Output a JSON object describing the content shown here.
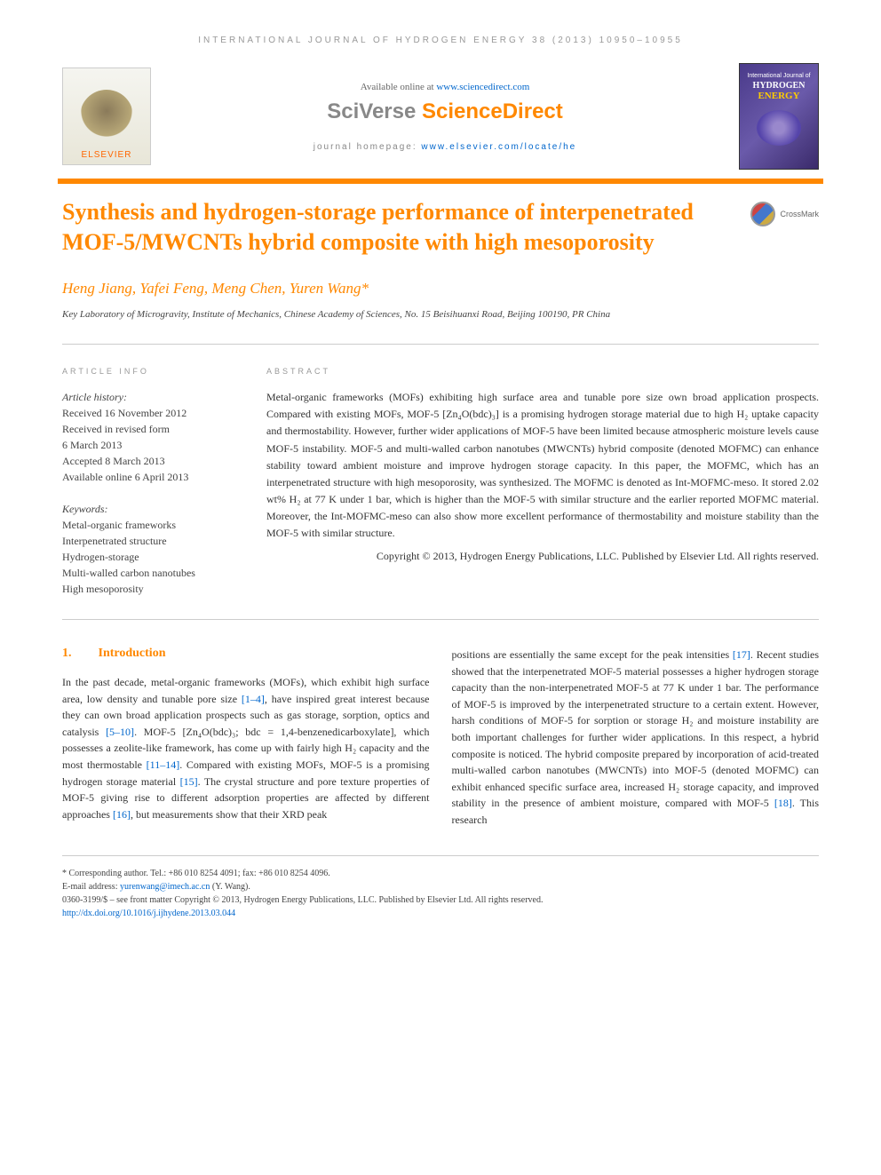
{
  "header": {
    "journal_ref": "INTERNATIONAL JOURNAL OF HYDROGEN ENERGY 38 (2013) 10950–10955",
    "available_prefix": "Available online at ",
    "available_link": "www.sciencedirect.com",
    "sciverse": "SciVerse ",
    "sciencedirect": "ScienceDirect",
    "homepage_prefix": "journal homepage: ",
    "homepage_link": "www.elsevier.com/locate/he",
    "elsevier": "ELSEVIER",
    "cover_top": "International Journal of",
    "cover_hydrogen": "HYDROGEN",
    "cover_energy": "ENERGY"
  },
  "crossmark": "CrossMark",
  "title": "Synthesis and hydrogen-storage performance of interpenetrated MOF-5/MWCNTs hybrid composite with high mesoporosity",
  "authors": "Heng Jiang, Yafei Feng, Meng Chen, Yuren Wang",
  "authors_marker": "*",
  "affiliation": "Key Laboratory of Microgravity, Institute of Mechanics, Chinese Academy of Sciences, No. 15 Beisihuanxi Road, Beijing 100190, PR China",
  "article_info": {
    "label": "ARTICLE INFO",
    "history_label": "Article history:",
    "received": "Received 16 November 2012",
    "revised1": "Received in revised form",
    "revised2": "6 March 2013",
    "accepted": "Accepted 8 March 2013",
    "available": "Available online 6 April 2013",
    "keywords_label": "Keywords:",
    "kw1": "Metal-organic frameworks",
    "kw2": "Interpenetrated structure",
    "kw3": "Hydrogen-storage",
    "kw4": "Multi-walled carbon nanotubes",
    "kw5": "High mesoporosity"
  },
  "abstract": {
    "label": "ABSTRACT",
    "text": "Metal-organic frameworks (MOFs) exhibiting high surface area and tunable pore size own broad application prospects. Compared with existing MOFs, MOF-5 [Zn₄O(bdc)₃] is a promising hydrogen storage material due to high H₂ uptake capacity and thermostability. However, further wider applications of MOF-5 have been limited because atmospheric moisture levels cause MOF-5 instability. MOF-5 and multi-walled carbon nanotubes (MWCNTs) hybrid composite (denoted MOFMC) can enhance stability toward ambient moisture and improve hydrogen storage capacity. In this paper, the MOFMC, which has an interpenetrated structure with high mesoporosity, was synthesized. The MOFMC is denoted as Int-MOFMC-meso. It stored 2.02 wt% H₂ at 77 K under 1 bar, which is higher than the MOF-5 with similar structure and the earlier reported MOFMC material. Moreover, the Int-MOFMC-meso can also show more excellent performance of thermostability and moisture stability than the MOF-5 with similar structure.",
    "copyright": "Copyright © 2013, Hydrogen Energy Publications, LLC. Published by Elsevier Ltd. All rights reserved."
  },
  "intro": {
    "number": "1.",
    "heading": "Introduction",
    "col1_p1": "In the past decade, metal-organic frameworks (MOFs), which exhibit high surface area, low density and tunable pore size ",
    "col1_ref1": "[1–4]",
    "col1_p2": ", have inspired great interest because they can own broad application prospects such as gas storage, sorption, optics and catalysis ",
    "col1_ref2": "[5–10]",
    "col1_p3": ". MOF-5 [Zn₄O(bdc)₃; bdc = 1,4-benzenedicarboxylate], which possesses a zeolite-like framework, has come up with fairly high H₂ capacity and the most thermostable ",
    "col1_ref3": "[11–14]",
    "col1_p4": ". Compared with existing MOFs, MOF-5 is a promising hydrogen storage material ",
    "col1_ref4": "[15]",
    "col1_p5": ". The crystal structure and pore texture properties of MOF-5 giving rise to different adsorption properties are affected by different approaches ",
    "col1_ref5": "[16]",
    "col1_p6": ", but measurements show that their XRD peak",
    "col2_p1": "positions are essentially the same except for the peak intensities ",
    "col2_ref1": "[17]",
    "col2_p2": ". Recent studies showed that the interpenetrated MOF-5 material possesses a higher hydrogen storage capacity than the non-interpenetrated MOF-5 at 77 K under 1 bar. The performance of MOF-5 is improved by the interpenetrated structure to a certain extent. However, harsh conditions of MOF-5 for sorption or storage H₂ and moisture instability are both important challenges for further wider applications. In this respect, a hybrid composite is noticed. The hybrid composite prepared by incorporation of acid-treated multi-walled carbon nanotubes (MWCNTs) into MOF-5 (denoted MOFMC) can exhibit enhanced specific surface area, increased H₂ storage capacity, and improved stability in the presence of ambient moisture, compared with MOF-5 ",
    "col2_ref2": "[18]",
    "col2_p3": ". This research"
  },
  "footer": {
    "corresponding": "* Corresponding author. Tel.: +86 010 8254 4091; fax: +86 010 8254 4096.",
    "email_label": "E-mail address: ",
    "email": "yurenwang@imech.ac.cn",
    "email_suffix": " (Y. Wang).",
    "issn": "0360-3199/$ – see front matter Copyright © 2013, Hydrogen Energy Publications, LLC. Published by Elsevier Ltd. All rights reserved.",
    "doi": "http://dx.doi.org/10.1016/j.ijhydene.2013.03.044"
  }
}
